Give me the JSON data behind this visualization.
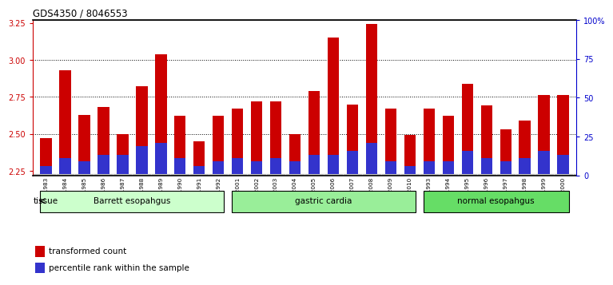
{
  "title": "GDS4350 / 8046553",
  "categories": [
    "GSM851983",
    "GSM851984",
    "GSM851985",
    "GSM851986",
    "GSM851987",
    "GSM851988",
    "GSM851989",
    "GSM851990",
    "GSM851991",
    "GSM851992",
    "GSM852001",
    "GSM852002",
    "GSM852003",
    "GSM852004",
    "GSM852005",
    "GSM852006",
    "GSM852007",
    "GSM852008",
    "GSM852009",
    "GSM852010",
    "GSM851993",
    "GSM851994",
    "GSM851995",
    "GSM851996",
    "GSM851997",
    "GSM851998",
    "GSM851999",
    "GSM852000"
  ],
  "red_values": [
    2.47,
    2.93,
    2.63,
    2.68,
    2.5,
    2.82,
    3.04,
    2.62,
    2.45,
    2.62,
    2.67,
    2.72,
    2.72,
    2.5,
    2.79,
    3.15,
    2.7,
    3.24,
    2.67,
    2.49,
    2.67,
    2.62,
    2.84,
    2.69,
    2.53,
    2.59,
    2.76,
    2.76
  ],
  "blue_percentiles": [
    5,
    10,
    8,
    12,
    12,
    18,
    20,
    10,
    5,
    8,
    10,
    8,
    10,
    8,
    12,
    12,
    15,
    20,
    8,
    5,
    8,
    8,
    15,
    10,
    8,
    10,
    15,
    12
  ],
  "ylim_left": [
    2.22,
    3.27
  ],
  "yticks_left": [
    2.25,
    2.5,
    2.75,
    3.0,
    3.25
  ],
  "ylim_right": [
    0,
    100
  ],
  "yticks_right": [
    0,
    25,
    50,
    75,
    100
  ],
  "yticklabels_right": [
    "0",
    "25",
    "50",
    "75",
    "100%"
  ],
  "groups": [
    {
      "label": "Barrett esopahgus",
      "start": 0,
      "end": 9,
      "color": "#ccffcc"
    },
    {
      "label": "gastric cardia",
      "start": 10,
      "end": 19,
      "color": "#99ee99"
    },
    {
      "label": "normal esopahgus",
      "start": 20,
      "end": 27,
      "color": "#66dd66"
    }
  ],
  "bar_color_red": "#cc0000",
  "bar_color_blue": "#3333cc",
  "baseline": 2.23,
  "ymin": 2.22,
  "ymax": 3.27,
  "axis_color_left": "#cc0000",
  "axis_color_right": "#0000cc"
}
